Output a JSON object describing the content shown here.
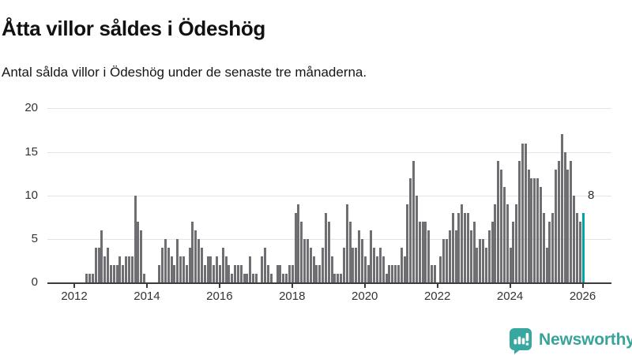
{
  "header": {
    "title": "Åtta villor såldes i Ödeshög",
    "subtitle": "Antal sålda villor i Ödeshög under de senaste tre månaderna."
  },
  "chart_data": {
    "type": "bar",
    "title": "Åtta villor såldes i Ödeshög",
    "subtitle": "Antal sålda villor i Ödeshög under de senaste tre månaderna.",
    "start_month": "2012-05",
    "end_month": "2026-01",
    "x_tick_labels": [
      "2012",
      "2014",
      "2016",
      "2018",
      "2020",
      "2022",
      "2024",
      "2026"
    ],
    "y_tick_labels": [
      "0",
      "5",
      "10",
      "15",
      "20"
    ],
    "y_ticks": [
      0,
      5,
      10,
      15,
      20
    ],
    "ylim": [
      0,
      20
    ],
    "grid": "horizontal",
    "values": [
      1,
      1,
      1,
      4,
      4,
      6,
      3,
      4,
      2,
      2,
      2,
      3,
      2,
      3,
      3,
      3,
      10,
      7,
      6,
      1,
      0,
      0,
      0,
      0,
      2,
      4,
      5,
      4,
      3,
      2,
      5,
      3,
      3,
      2,
      4,
      7,
      6,
      5,
      4,
      2,
      3,
      3,
      2,
      3,
      2,
      4,
      3,
      2,
      1,
      2,
      2,
      2,
      1,
      1,
      3,
      1,
      1,
      0,
      3,
      4,
      2,
      1,
      0,
      2,
      2,
      1,
      1,
      2,
      2,
      8,
      9,
      7,
      5,
      5,
      4,
      3,
      2,
      2,
      4,
      8,
      7,
      3,
      1,
      1,
      1,
      4,
      9,
      7,
      4,
      4,
      6,
      5,
      3,
      2,
      6,
      4,
      3,
      4,
      3,
      1,
      2,
      2,
      2,
      2,
      4,
      3,
      9,
      12,
      14,
      10,
      7,
      7,
      7,
      6,
      2,
      2,
      0,
      3,
      5,
      5,
      6,
      8,
      6,
      8,
      9,
      8,
      8,
      6,
      7,
      4,
      5,
      5,
      4,
      6,
      7,
      9,
      14,
      13,
      11,
      9,
      4,
      7,
      9,
      14,
      16,
      16,
      13,
      12,
      12,
      12,
      11,
      8,
      4,
      7,
      8,
      13,
      14,
      17,
      15,
      13,
      14,
      10,
      8,
      7,
      8
    ],
    "highlight_last_value": 8,
    "annotation": {
      "text": "8"
    },
    "colors": {
      "bar": "#6e6e73",
      "highlight": "#00a4a1",
      "gridline": "#e4e4e6",
      "axis": "#3c3c3c"
    }
  },
  "footer": {
    "brand": "Newsworthy",
    "brand_color": "#38a39a"
  }
}
